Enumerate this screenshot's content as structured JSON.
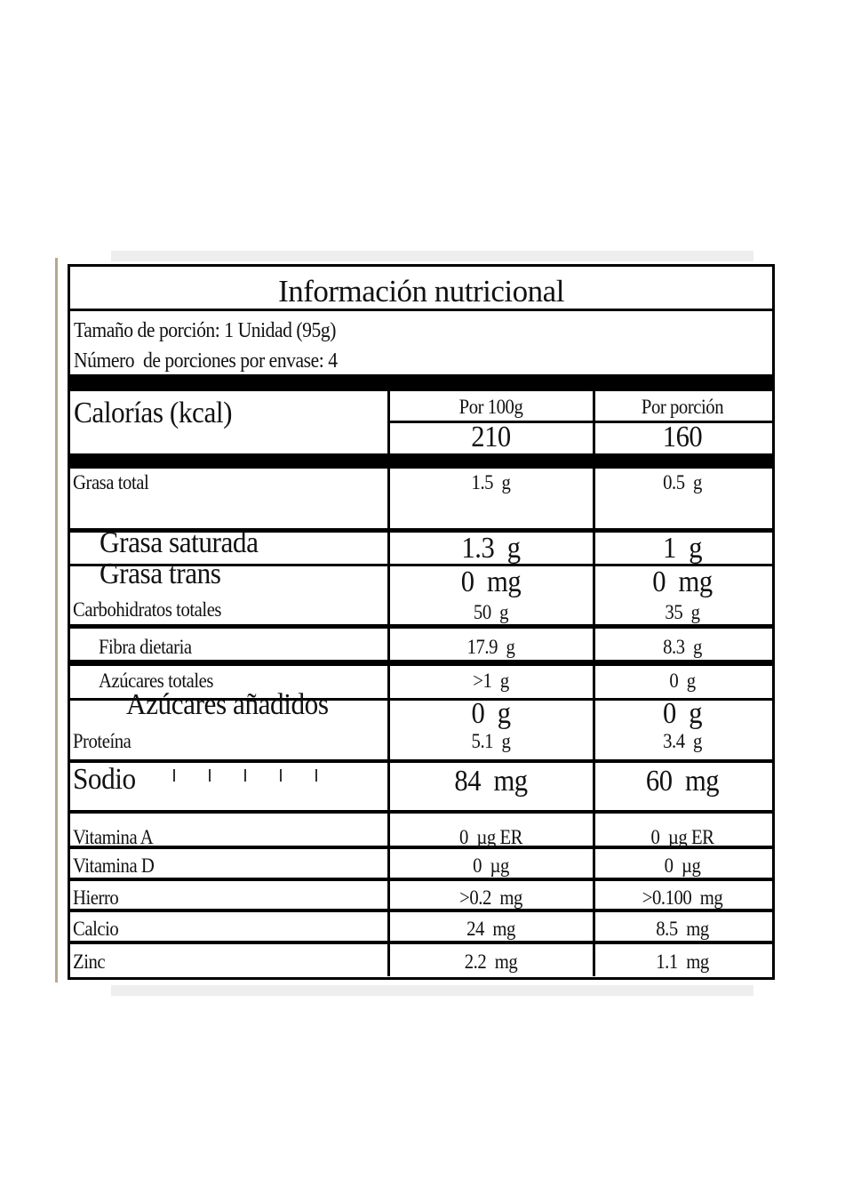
{
  "title": "Información nutricional",
  "serving_size": "Tamaño de porción: 1 Unidad (95g)",
  "servings_per_container": "Número  de porciones por envase: 4",
  "calories": {
    "label": "Calorías (kcal)",
    "col1_header": "Por 100g",
    "col2_header": "Por porción",
    "per_100g": "210",
    "per_serving": "160"
  },
  "nutrients": [
    {
      "label": "Grasa total",
      "per_100g": "1.5  g",
      "per_serving": "0.5  g"
    },
    {
      "label": "Grasa saturada",
      "per_100g": "1.3  g",
      "per_serving": "1  g"
    },
    {
      "label": "Grasa trans",
      "per_100g": "0  mg",
      "per_serving": "0  mg"
    },
    {
      "label": "Carbohidratos totales",
      "per_100g": "50  g",
      "per_serving": "35  g"
    },
    {
      "label": "Fibra dietaria",
      "per_100g": "17.9  g",
      "per_serving": "8.3  g"
    },
    {
      "label": "Azúcares totales",
      "per_100g": ">1  g",
      "per_serving": "0  g"
    },
    {
      "label": "Azúcares añadidos",
      "per_100g": "0  g",
      "per_serving": "0  g"
    },
    {
      "label": "Proteína",
      "per_100g": "5.1  g",
      "per_serving": "3.4  g"
    },
    {
      "label": "Sodio",
      "per_100g": "84  mg",
      "per_serving": "60  mg"
    },
    {
      "label": "Vitamina A",
      "per_100g": "0  µg ER",
      "per_serving": "0  µg ER"
    },
    {
      "label": "Vitamina D",
      "per_100g": "0  µg",
      "per_serving": "0  µg"
    },
    {
      "label": "Hierro",
      "per_100g": ">0.2  mg",
      "per_serving": ">0.100  mg"
    },
    {
      "label": "Calcio",
      "per_100g": "24  mg",
      "per_serving": "8.5  mg"
    },
    {
      "label": "Zinc",
      "per_100g": "2.2  mg",
      "per_serving": "1.1  mg"
    }
  ]
}
